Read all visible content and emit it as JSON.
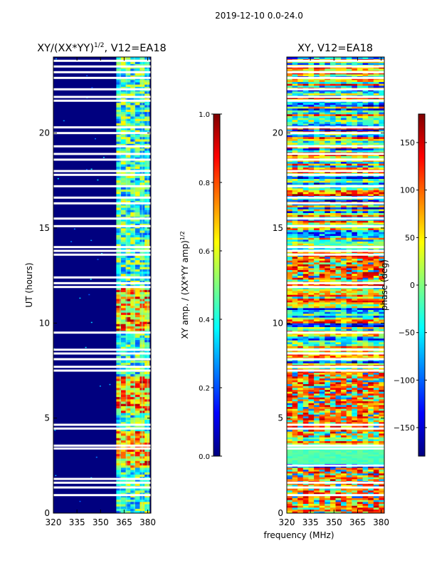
{
  "suptitle": "2019-12-10 0.0-24.0",
  "chart_data": [
    {
      "type": "heatmap",
      "title_main": "XY/(XX*YY)",
      "title_sup": "1/2",
      "title_tail": ", V12=EA18",
      "xlabel": "",
      "ylabel": "UT (hours)",
      "xlim": [
        320,
        382
      ],
      "ylim": [
        0,
        24
      ],
      "xticks": [
        320,
        335,
        350,
        365,
        380
      ],
      "yticks": [
        0,
        5,
        10,
        15,
        20
      ],
      "colormap": "jet",
      "background_color": "#00007f",
      "active_band_mhz": [
        360,
        381
      ],
      "channel_stripes_mhz": [
        362.5,
        366.5,
        371.5,
        376.5,
        380
      ],
      "bright_hours": [
        [
          9.5,
          11.8
        ],
        [
          5.2,
          7.2
        ],
        [
          2.3,
          4.3
        ]
      ],
      "blank_hours": [
        0.95,
        1.35,
        1.6,
        1.8,
        3.4,
        3.55,
        4.45,
        4.65,
        7.5,
        7.7,
        8.1,
        8.4,
        8.6,
        9.5,
        11.9,
        12.1,
        12.4,
        13.6,
        13.8,
        14.0,
        15.1,
        15.5,
        16.3,
        16.6,
        17.2,
        17.8,
        18.0,
        18.6,
        18.9,
        19.3,
        20.0,
        20.3,
        21.7,
        21.9,
        22.3,
        22.9,
        23.2,
        23.5,
        23.8
      ]
    },
    {
      "type": "colorbar",
      "label_main": "XY amp. / (XX*YY amp)",
      "label_sup": "1/2",
      "range": [
        0.0,
        1.0
      ],
      "ticks": [
        "0.0",
        "0.2",
        "0.4",
        "0.6",
        "0.8",
        "1.0"
      ],
      "tick_values": [
        0.0,
        0.2,
        0.4,
        0.6,
        0.8,
        1.0
      ]
    },
    {
      "type": "heatmap",
      "title": "XY, V12=EA18",
      "xlabel": "frequency (MHz)",
      "ylabel": "",
      "xlim": [
        320,
        382
      ],
      "ylim": [
        0,
        24
      ],
      "xticks": [
        320,
        335,
        350,
        365,
        380
      ],
      "yticks": [
        0,
        5,
        10,
        15,
        20
      ],
      "colormap": "jet",
      "value_range_deg": [
        -180,
        180
      ],
      "noisy_hours": [
        [
          4.0,
          7.5
        ],
        [
          12.2,
          13.6
        ],
        [
          0.0,
          2.4
        ]
      ],
      "quiet_hours": [
        [
          2.6,
          3.6
        ]
      ],
      "blank_hours": [
        0.95,
        1.35,
        1.6,
        2.5,
        3.4,
        3.55,
        4.45,
        4.65,
        7.5,
        7.7,
        8.1,
        8.4,
        8.6,
        9.5,
        11.9,
        12.1,
        13.6,
        13.8,
        14.0,
        15.1,
        15.5,
        16.3,
        16.6,
        17.2,
        17.8,
        18.0,
        18.6,
        18.9,
        19.3,
        20.0,
        20.3,
        21.7,
        21.9,
        22.3,
        22.9,
        23.2,
        23.5,
        23.8
      ]
    },
    {
      "type": "colorbar",
      "label": "phase (deg)",
      "range": [
        -180,
        180
      ],
      "ticks": [
        "150",
        "100",
        "50",
        "0",
        "−50",
        "−100",
        "−150"
      ],
      "tick_values": [
        150,
        100,
        50,
        0,
        -50,
        -100,
        -150
      ]
    }
  ]
}
